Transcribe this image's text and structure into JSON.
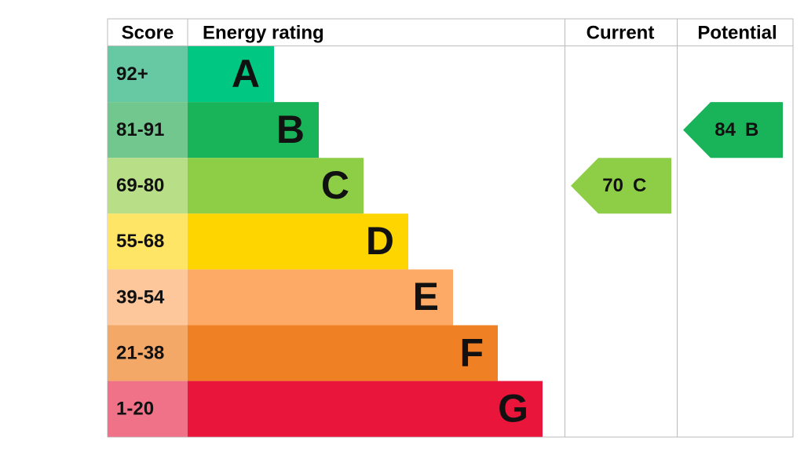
{
  "header": {
    "score": "Score",
    "rating": "Energy rating",
    "current": "Current",
    "potential": "Potential"
  },
  "bands": [
    {
      "score": "92+",
      "letter": "A",
      "color": "#00c781",
      "score_color": "#66c9a3"
    },
    {
      "score": "81-91",
      "letter": "B",
      "color": "#19b459",
      "score_color": "#71c78e"
    },
    {
      "score": "69-80",
      "letter": "C",
      "color": "#8dce46",
      "score_color": "#b8df88"
    },
    {
      "score": "55-68",
      "letter": "D",
      "color": "#ffd500",
      "score_color": "#ffe566"
    },
    {
      "score": "39-54",
      "letter": "E",
      "color": "#fcaa65",
      "score_color": "#fdc69b"
    },
    {
      "score": "21-38",
      "letter": "F",
      "color": "#ef8023",
      "score_color": "#f4a868"
    },
    {
      "score": "1-20",
      "letter": "G",
      "color": "#e9153b",
      "score_color": "#ef7288"
    }
  ],
  "current": {
    "value": 70,
    "letter": "C"
  },
  "potential": {
    "value": 84,
    "letter": "B"
  }
}
